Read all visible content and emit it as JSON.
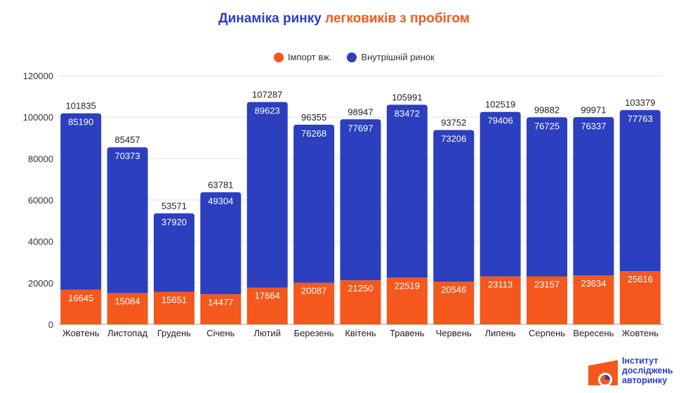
{
  "chart_data": {
    "type": "bar",
    "stacked": true,
    "title_part1": "Динаміка ринку",
    "title_part2": "легковиків з пробігом",
    "categories": [
      "Жовтень",
      "Листопад",
      "Грудень",
      "Січень",
      "Лютий",
      "Березень",
      "Квітень",
      "Травень",
      "Червень",
      "Липень",
      "Серпень",
      "Вересень",
      "Жовтень"
    ],
    "series": [
      {
        "name": "Імпорт вж.",
        "color": "#f4581d",
        "values": [
          16645,
          15084,
          15651,
          14477,
          17664,
          20087,
          21250,
          22519,
          20546,
          23113,
          23157,
          23634,
          25616
        ]
      },
      {
        "name": "Внутрішній ринок",
        "color": "#2b3fbf",
        "values": [
          85190,
          70373,
          37920,
          49304,
          89623,
          76268,
          77697,
          83472,
          73206,
          79406,
          76725,
          76337,
          77763
        ]
      }
    ],
    "totals": [
      101835,
      85457,
      53571,
      63781,
      107287,
      96355,
      98947,
      105991,
      93752,
      102519,
      99882,
      99971,
      103379
    ],
    "ylim": [
      0,
      120000
    ],
    "yticks": [
      0,
      20000,
      40000,
      60000,
      80000,
      100000,
      120000
    ],
    "grid": true,
    "legend": "top"
  },
  "logo": {
    "lines": [
      "Інститут",
      "досліджень",
      "авторинку"
    ]
  }
}
